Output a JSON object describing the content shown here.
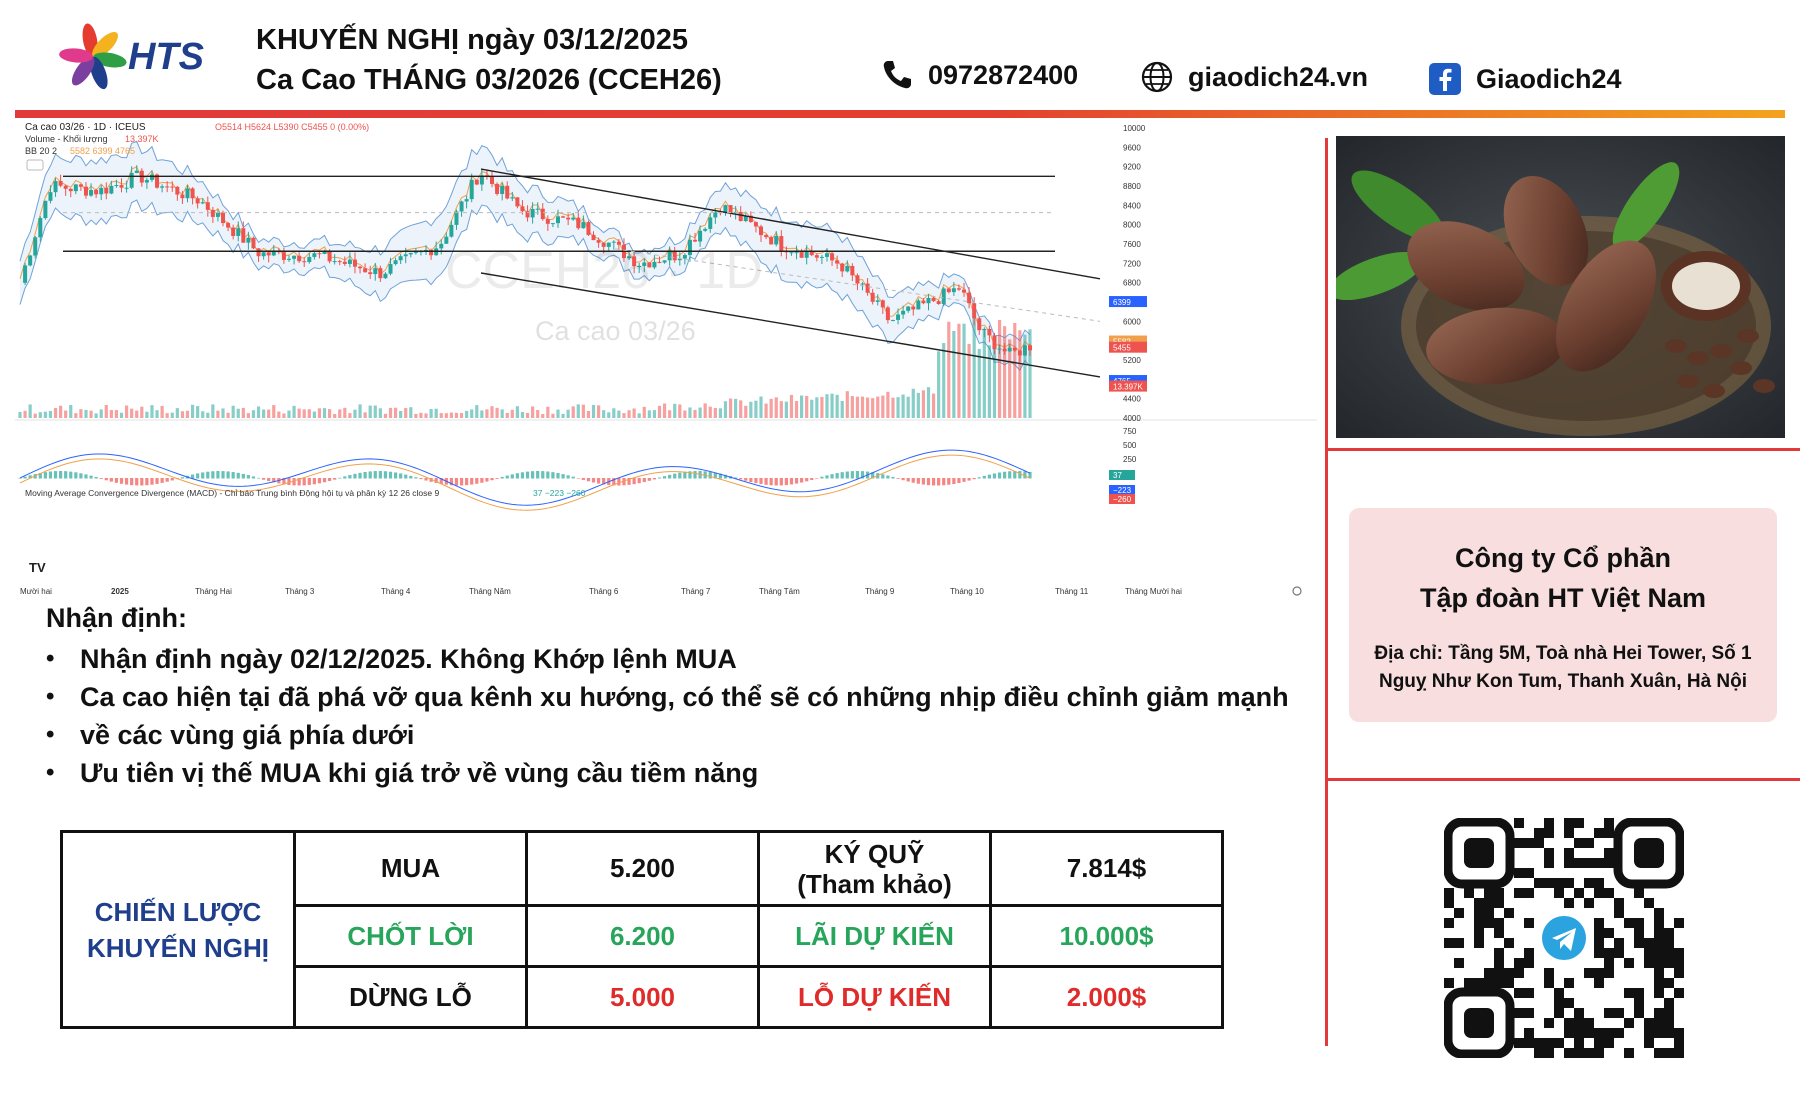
{
  "header": {
    "logo_text": "HTS",
    "title_line1": "KHUYẾN NGHỊ ngày 03/12/2025",
    "title_line2": "Ca Cao THÁNG 03/2026 (CCEH26)",
    "phone": "0972872400",
    "website": "giaodich24.vn",
    "facebook": "Giaodich24",
    "icons": {
      "phone": "phone-icon",
      "web": "globe-icon",
      "fb": "facebook-icon"
    }
  },
  "chart": {
    "symbol_line": "Ca cao 03/26 · 1D · ICEUS",
    "ohlc": "O5514 H5624 L5390 C5455 0 (0.00%)",
    "volume_label": "Volume - Khối lượng",
    "volume_value": "13.397K",
    "bb_label": "BB 20 2",
    "bb_values": "5582  6399  4765",
    "watermark_main": "CCEH26 · 1D",
    "watermark_sub": "Ca cao 03/26",
    "macd_label": "Moving Average Convergence Divergence (MACD) - Chỉ báo Trung bình Động hội tụ và phân kỳ 12 26 close 9",
    "macd_values": "37  −223  −260",
    "price_ticks": [
      "10000",
      "9600",
      "9200",
      "8800",
      "8400",
      "8000",
      "7600",
      "7200",
      "6800",
      "6000",
      "5200",
      "4400",
      "4000"
    ],
    "price_badges": [
      "6399",
      "5582",
      "5455",
      "4765",
      "13.397K"
    ],
    "macd_ticks": [
      "750",
      "500",
      "250",
      "0"
    ],
    "macd_badges": [
      "37",
      "−223",
      "−260"
    ],
    "x_ticks": [
      "Mười hai",
      "2025",
      "Tháng Hai",
      "Tháng 3",
      "Tháng 4",
      "Tháng Năm",
      "Tháng 6",
      "Tháng 7",
      "Tháng Tám",
      "Tháng 9",
      "Tháng 10",
      "Tháng 11",
      "Tháng Mười hai"
    ],
    "colors": {
      "up": "#26a69a",
      "down": "#ef5350",
      "band": "#a9c9ee",
      "ma": "#f0a04b",
      "line": "#222222"
    }
  },
  "chart_data": {
    "type": "candlestick",
    "resistance_levels": [
      9000,
      7450
    ],
    "ylim": [
      4000,
      10000
    ],
    "last_close": 5455,
    "bollinger": {
      "period": 20,
      "mult": 2,
      "mid": 5582,
      "upper": 6399,
      "lower": 4765
    },
    "macd": {
      "histogram": 37,
      "macd": -223,
      "signal": -260
    }
  },
  "analysis": {
    "title": "Nhận định:",
    "bullets": [
      "Nhận định ngày 02/12/2025. Không Khớp lệnh MUA",
      "Ca cao hiện tại đã phá vỡ qua kênh xu hướng, có thể sẽ có những nhịp điều chỉnh giảm mạnh",
      "về các vùng giá phía dưới",
      "Ưu tiên vị thế MUA khi giá trở về vùng cầu tiềm năng"
    ]
  },
  "strategy": {
    "head_line1": "CHIẾN LƯỢC",
    "head_line2": "KHUYẾN NGHỊ",
    "rows": [
      {
        "label": "MUA",
        "value": "5.200",
        "label2_line1": "KÝ QUỸ",
        "label2_line2": "(Tham khảo)",
        "value2": "7.814$"
      },
      {
        "label": "CHỐT LỜI",
        "value": "6.200",
        "label2": "LÃI DỰ KIẾN",
        "value2": "10.000$"
      },
      {
        "label": "DỪNG LỖ",
        "value": "5.000",
        "label2": "LỖ DỰ KIẾN",
        "value2": "2.000$"
      }
    ]
  },
  "company": {
    "name_line1": "Công ty Cổ phần",
    "name_line2": "Tập đoàn HT Việt Nam",
    "address_line1": "Địa chỉ: Tầng 5M, Toà nhà Hei Tower, Số 1",
    "address_line2": "Nguỵ Như Kon Tum, Thanh Xuân, Hà Nội"
  }
}
